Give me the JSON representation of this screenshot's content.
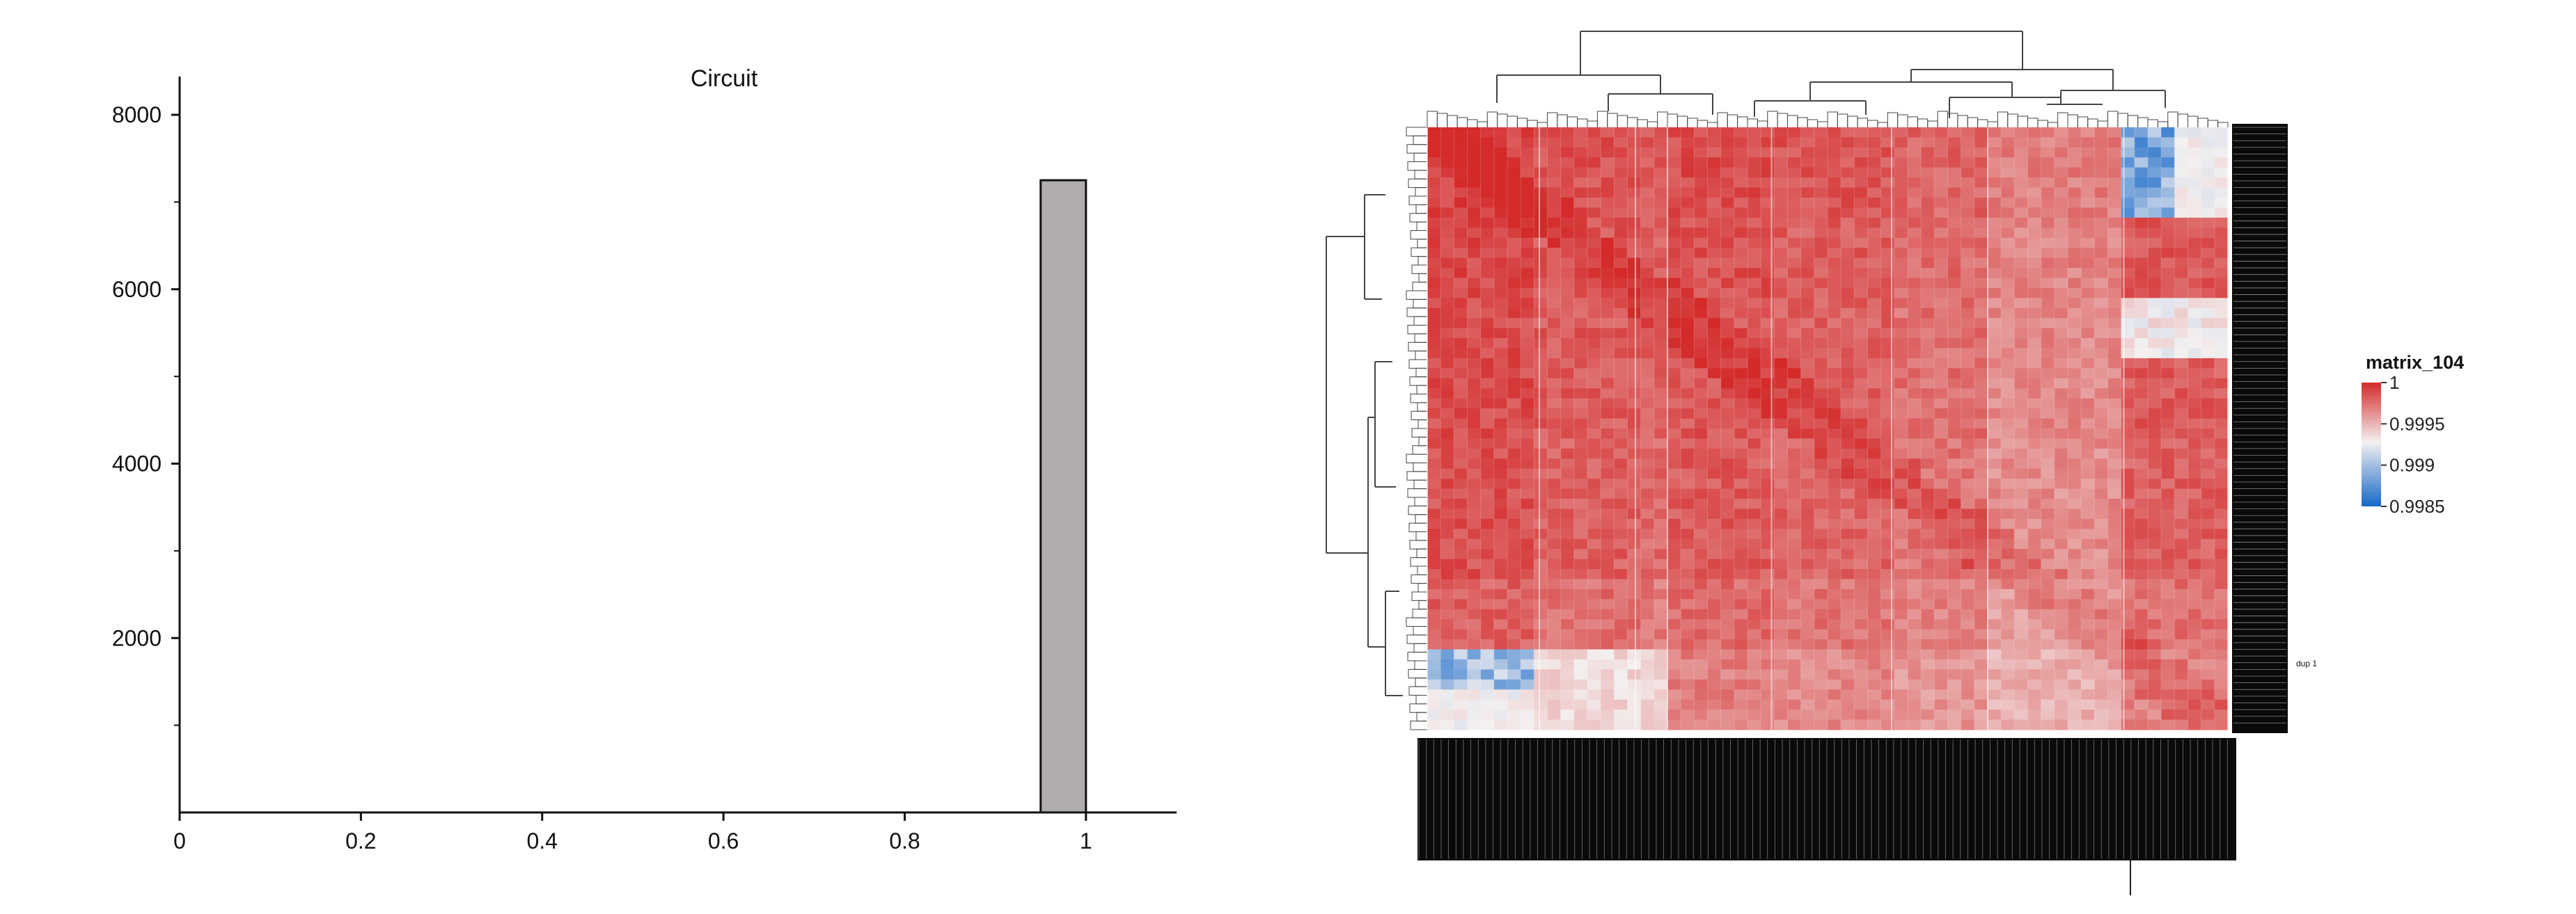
{
  "chart_data": [
    {
      "type": "bar",
      "title": "Circuit",
      "bins": [
        {
          "x0": 0.95,
          "x1": 1.0,
          "value": 7250
        }
      ],
      "xlim": [
        0,
        1.1
      ],
      "ylim": [
        0,
        8200
      ],
      "x_ticks": [
        "0",
        "0.2",
        "0.4",
        "0.6",
        "0.8",
        "1"
      ],
      "y_ticks": [
        "2000",
        "4000",
        "6000",
        "8000"
      ],
      "xlabel": "",
      "ylabel": "",
      "bar_color": "#b0acac",
      "grid": false
    },
    {
      "type": "heatmap",
      "legend_title": "matrix_104",
      "legend_labels": [
        "1",
        "0.9995",
        "0.999",
        "0.9985"
      ],
      "legend_placement": "right",
      "color_range": [
        0.9985,
        1
      ],
      "colors": {
        "high": "#d42a2a",
        "mid": "#f4f0f0",
        "low": "#1668c8"
      },
      "row_labels_visible": "dense, illegible",
      "highlight_row_label": "dup 1",
      "col_labels_visible": "dense, illegible",
      "dendrograms": [
        "top",
        "left"
      ]
    }
  ]
}
